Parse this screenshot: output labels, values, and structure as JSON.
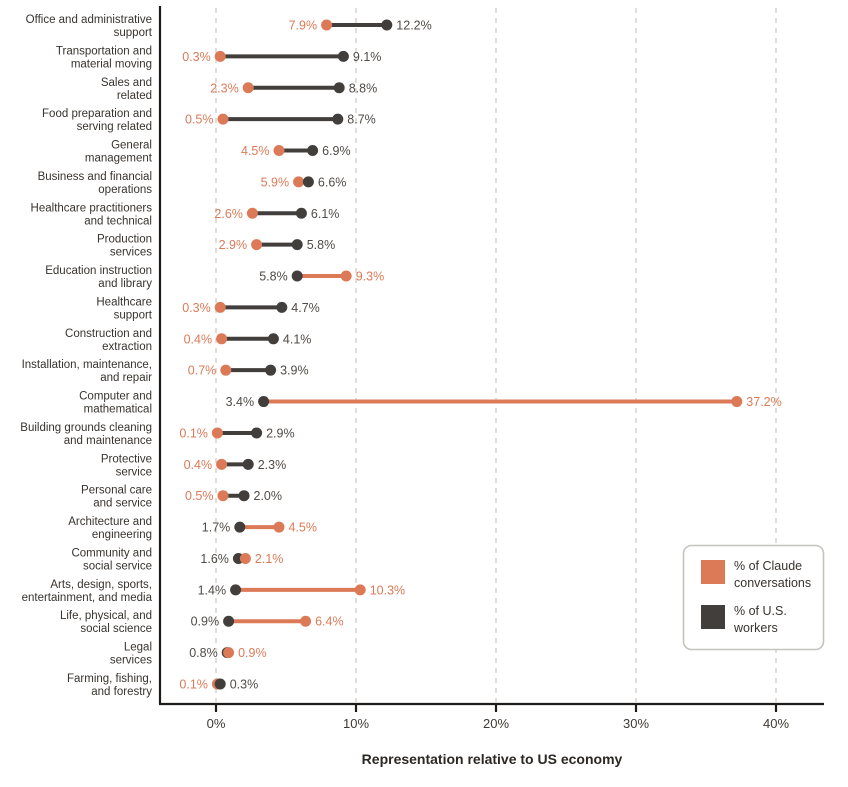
{
  "chart_data": {
    "type": "dumbbell",
    "title": "",
    "xlabel": "Representation relative to US economy",
    "x_ticks": [
      "0%",
      "10%",
      "20%",
      "30%",
      "40%"
    ],
    "x_tick_values": [
      0,
      10,
      20,
      30,
      40
    ],
    "xlim": [
      -4,
      43.4
    ],
    "grid": "vertical-dashed",
    "legend_position": "bottom-right",
    "legend": [
      {
        "label": "% of Claude conversations",
        "lines": [
          "% of Claude",
          "conversations"
        ],
        "color": "#DC7A58"
      },
      {
        "label": "% of U.S. workers",
        "lines": [
          "% of U.S.",
          "workers"
        ],
        "color": "#413E3B"
      }
    ],
    "categories": [
      "Office and administrative support",
      "Transportation and material moving",
      "Sales and related",
      "Food preparation and serving related",
      "General management",
      "Business and financial operations",
      "Healthcare practitioners and technical",
      "Production services",
      "Education instruction and library",
      "Healthcare support",
      "Construction and extraction",
      "Installation, maintenance, and repair",
      "Computer and mathematical",
      "Building grounds cleaning and maintenance",
      "Protective service",
      "Personal care and service",
      "Architecture and engineering",
      "Community and social service",
      "Arts, design, sports, entertainment, and media",
      "Life, physical, and social science",
      "Legal services",
      "Farming, fishing, and forestry"
    ],
    "category_lines": [
      [
        "Office and administrative",
        "support"
      ],
      [
        "Transportation and",
        "material moving"
      ],
      [
        "Sales and",
        "related"
      ],
      [
        "Food preparation and",
        "serving related"
      ],
      [
        "General",
        "management"
      ],
      [
        "Business and financial",
        "operations"
      ],
      [
        "Healthcare practitioners",
        "and technical"
      ],
      [
        "Production",
        "services"
      ],
      [
        "Education instruction",
        "and library"
      ],
      [
        "Healthcare",
        "support"
      ],
      [
        "Construction and",
        "extraction"
      ],
      [
        "Installation, maintenance,",
        "and repair"
      ],
      [
        "Computer and",
        "mathematical"
      ],
      [
        "Building grounds cleaning",
        "and maintenance"
      ],
      [
        "Protective",
        "service"
      ],
      [
        "Personal care",
        "and service"
      ],
      [
        "Architecture and",
        "engineering"
      ],
      [
        "Community and",
        "social service"
      ],
      [
        "Arts, design, sports,",
        "entertainment, and media"
      ],
      [
        "Life, physical, and",
        "social science"
      ],
      [
        "Legal",
        "services"
      ],
      [
        "Farming, fishing,",
        "and forestry"
      ]
    ],
    "series": [
      {
        "name": "% of Claude conversations",
        "color": "#DC7A58",
        "values": [
          7.9,
          0.3,
          2.3,
          0.5,
          4.5,
          5.9,
          2.6,
          2.9,
          9.3,
          0.3,
          0.4,
          0.7,
          37.2,
          0.1,
          0.4,
          0.5,
          4.5,
          2.1,
          10.3,
          6.4,
          0.9,
          0.1
        ]
      },
      {
        "name": "% of U.S. workers",
        "color": "#413E3B",
        "values": [
          12.2,
          9.1,
          8.8,
          8.7,
          6.9,
          6.6,
          6.1,
          5.8,
          5.8,
          4.7,
          4.1,
          3.9,
          3.4,
          2.9,
          2.3,
          2.0,
          1.7,
          1.6,
          1.4,
          0.9,
          0.8,
          0.3
        ]
      }
    ],
    "value_label_format": "{value}%"
  },
  "colors": {
    "background": "#FFFFFF",
    "claude_accent": "#DC7A58",
    "workers_accent": "#413E3B",
    "claude_value_label": "#DC7A58",
    "workers_value_label": "#504B47",
    "category_label": "#38332E",
    "axis_line": "#1E1B18",
    "tick_label": "#3E3933",
    "gridline": "#D9D6CE",
    "legend_border": "#C5C3BE",
    "legend_background": "#FFFFFF"
  }
}
